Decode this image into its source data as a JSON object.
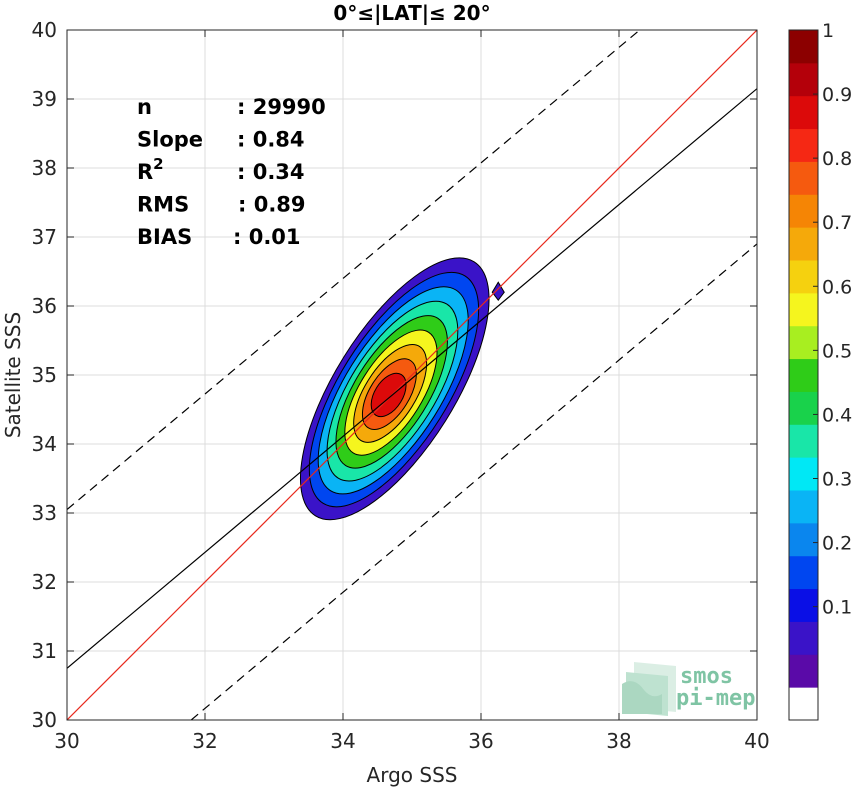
{
  "chart_data": {
    "type": "contour",
    "title": "0°≤|LAT|≤ 20°",
    "xlabel": "Argo SSS",
    "ylabel": "Satellite SSS",
    "xlim": [
      30,
      40
    ],
    "ylim": [
      30,
      40
    ],
    "x_ticks": [
      "30",
      "32",
      "34",
      "36",
      "38",
      "40"
    ],
    "y_ticks": [
      "30",
      "31",
      "32",
      "33",
      "34",
      "35",
      "36",
      "37",
      "38",
      "39",
      "40"
    ],
    "grid": true,
    "stats": [
      {
        "label": "n",
        "value": ": 29990"
      },
      {
        "label": "Slope",
        "value": ": 0.84"
      },
      {
        "label": "R",
        "sup": "2",
        "value": ": 0.34"
      },
      {
        "label": "RMS",
        "value": ": 0.89"
      },
      {
        "label": "BIAS",
        "value": ": 0.01"
      }
    ],
    "lines": [
      {
        "role": "one-to-one",
        "color": "#e8291d",
        "style": "solid",
        "x": [
          30,
          40
        ],
        "y": [
          30,
          40
        ]
      },
      {
        "role": "regression",
        "color": "#000000",
        "style": "solid",
        "x": [
          30,
          40
        ],
        "y": [
          30.75,
          39.15
        ]
      },
      {
        "role": "upper-bound",
        "color": "#000000",
        "style": "dashed",
        "x": [
          30,
          38.3
        ],
        "y": [
          33.05,
          40
        ]
      },
      {
        "role": "lower-bound",
        "color": "#000000",
        "style": "dashed",
        "x": [
          31.8,
          40
        ],
        "y": [
          30,
          36.9
        ]
      }
    ],
    "density_peak": {
      "x": 34.65,
      "y": 34.7
    },
    "contour_levels": [
      0.05,
      0.15,
      0.25,
      0.35,
      0.45,
      0.55,
      0.65,
      0.75,
      0.85
    ],
    "outlier_patch": {
      "x": 36.25,
      "y": 36.2
    },
    "colorbar": {
      "range": [
        0,
        1
      ],
      "tick_labels": [
        "1",
        "0.9",
        "0.8",
        "0.7",
        "0.6",
        "0.5",
        "0.4",
        "0.3",
        "0.2",
        "0.1"
      ],
      "tick_values": [
        1,
        0.9,
        0.8,
        0.7,
        0.6,
        0.5,
        0.4,
        0.3,
        0.2,
        0.1
      ],
      "colors": [
        "#ffffff",
        "#5a0aa8",
        "#3a13c8",
        "#0a0fe6",
        "#0046f0",
        "#0a86ee",
        "#0ab4f5",
        "#00e8f5",
        "#19e6a8",
        "#19d24b",
        "#2fcc18",
        "#a8ee20",
        "#f5f51e",
        "#f5d10f",
        "#f5a90a",
        "#f58505",
        "#f55a0f",
        "#f52814",
        "#dc0a0a",
        "#b4000a",
        "#8c0000"
      ]
    },
    "logo": {
      "line1": "smos",
      "line2": "pi-mep"
    }
  }
}
